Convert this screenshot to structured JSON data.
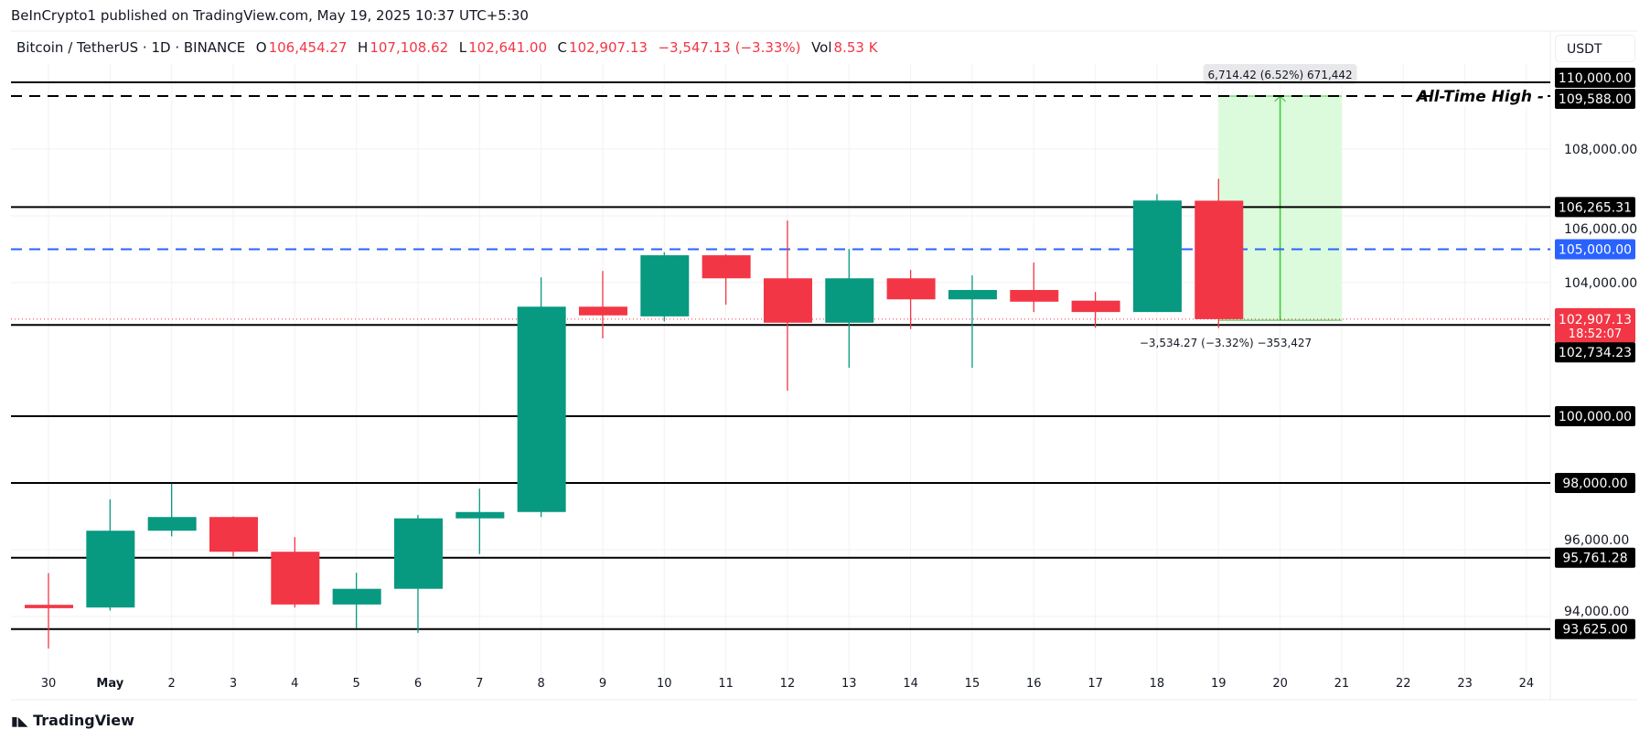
{
  "published": "BeInCrypto1 published on TradingView.com, May 19, 2025 10:37 UTC+5:30",
  "header": {
    "symbol": "Bitcoin / TetherUS · 1D · BINANCE",
    "o_label": "O",
    "o": "106,454.27",
    "h_label": "H",
    "h": "107,108.62",
    "l_label": "L",
    "l": "102,641.00",
    "c_label": "C",
    "c": "102,907.13",
    "change": "−3,547.13 (−3.33%)",
    "vol_label": "Vol",
    "vol": "8.53 K"
  },
  "currency": "USDT",
  "brand": "TradingView",
  "colors": {
    "up": "#089981",
    "down": "#f23645",
    "blue": "#2962ff",
    "measure_fill": "#dcfadc",
    "measure_line": "#34c934"
  },
  "chart_data": {
    "type": "candlestick",
    "x_labels": [
      "30",
      "May",
      "2",
      "3",
      "4",
      "5",
      "6",
      "7",
      "8",
      "9",
      "10",
      "11",
      "12",
      "13",
      "14",
      "15",
      "16",
      "17",
      "18",
      "19",
      "20",
      "21",
      "22",
      "23",
      "24"
    ],
    "candles": [
      {
        "date": "Apr 30",
        "o": 94350,
        "h": 95300,
        "l": 93040,
        "c": 94250
      },
      {
        "date": "May 1",
        "o": 94270,
        "h": 97510,
        "l": 94180,
        "c": 96570
      },
      {
        "date": "May 2",
        "o": 96570,
        "h": 97980,
        "l": 96400,
        "c": 96980
      },
      {
        "date": "May 3",
        "o": 96980,
        "h": 97000,
        "l": 95800,
        "c": 95940
      },
      {
        "date": "May 4",
        "o": 95940,
        "h": 96380,
        "l": 94270,
        "c": 94360
      },
      {
        "date": "May 5",
        "o": 94360,
        "h": 95310,
        "l": 93640,
        "c": 94830
      },
      {
        "date": "May 6",
        "o": 94830,
        "h": 97040,
        "l": 93510,
        "c": 96940
      },
      {
        "date": "May 7",
        "o": 96940,
        "h": 97830,
        "l": 95870,
        "c": 97130
      },
      {
        "date": "May 8",
        "o": 97130,
        "h": 104160,
        "l": 96980,
        "c": 103280
      },
      {
        "date": "May 9",
        "o": 103280,
        "h": 104350,
        "l": 102330,
        "c": 103020
      },
      {
        "date": "May 10",
        "o": 102990,
        "h": 104910,
        "l": 102840,
        "c": 104820
      },
      {
        "date": "May 11",
        "o": 104820,
        "h": 104850,
        "l": 103340,
        "c": 104130
      },
      {
        "date": "May 12",
        "o": 104130,
        "h": 105860,
        "l": 100760,
        "c": 102800
      },
      {
        "date": "May 13",
        "o": 102800,
        "h": 105010,
        "l": 101450,
        "c": 104130
      },
      {
        "date": "May 14",
        "o": 104130,
        "h": 104380,
        "l": 102610,
        "c": 103500
      },
      {
        "date": "May 15",
        "o": 103500,
        "h": 104220,
        "l": 101450,
        "c": 103780
      },
      {
        "date": "May 16",
        "o": 103780,
        "h": 104600,
        "l": 103120,
        "c": 103430
      },
      {
        "date": "May 17",
        "o": 103460,
        "h": 103720,
        "l": 102650,
        "c": 103120
      },
      {
        "date": "May 18",
        "o": 103120,
        "h": 106650,
        "l": 103120,
        "c": 106460
      },
      {
        "date": "May 19",
        "o": 106454.27,
        "h": 107108.62,
        "l": 102641.0,
        "c": 102907.13
      }
    ],
    "y_ticks": [
      {
        "value": 108000,
        "label": "108,000.00"
      },
      {
        "value": 106000,
        "label": "106,000.00"
      },
      {
        "value": 104000,
        "label": "104,000.00"
      },
      {
        "value": 96000,
        "label": "96,000.00"
      },
      {
        "value": 94000,
        "label": "94,000.00"
      }
    ],
    "levels": [
      {
        "value": 110000,
        "label": "110,000.00",
        "style": "solid",
        "color": "#000000"
      },
      {
        "value": 109588,
        "label": "109,588.00",
        "style": "dashed",
        "color": "#000000",
        "annotation": "All-Time High"
      },
      {
        "value": 106265.31,
        "label": "106,265.31",
        "style": "solid",
        "color": "#000000"
      },
      {
        "value": 105000,
        "label": "105,000.00",
        "style": "dashed",
        "color": "#2962ff"
      },
      {
        "value": 102734.23,
        "label": "102,734.23",
        "style": "solid",
        "color": "#000000"
      },
      {
        "value": 100000,
        "label": "100,000.00",
        "style": "solid",
        "color": "#000000"
      },
      {
        "value": 98000,
        "label": "98,000.00",
        "style": "solid",
        "color": "#000000"
      },
      {
        "value": 95761.28,
        "label": "95,761.28",
        "style": "solid",
        "color": "#000000"
      },
      {
        "value": 93625,
        "label": "93,625.00",
        "style": "solid",
        "color": "#000000"
      }
    ],
    "last_price": {
      "value": 102907.13,
      "label": "102,907.13",
      "countdown": "18:52:07"
    },
    "measure": {
      "from_date": "May 19",
      "to_date": "May 21",
      "from_price": 102873.58,
      "to_price": 109588,
      "label": "6,714.42 (6.52%) 671,442"
    },
    "measure_note": "−3,534.27 (−3.32%) −353,427"
  }
}
